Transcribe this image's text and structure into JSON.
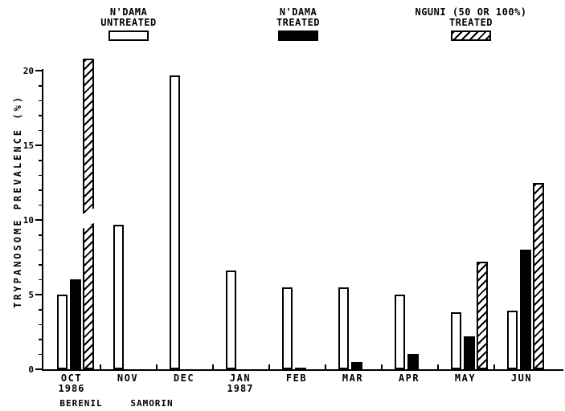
{
  "meta": {
    "paper_color": "#ffffff",
    "ink_color": "#000000",
    "figure_kind": "scanned journal bar chart"
  },
  "legend": {
    "items": [
      {
        "line1": "N'DAMA",
        "line2": "UNTREATED",
        "swatch": "open",
        "swatch_style_name": "white-bar"
      },
      {
        "line1": "N'DAMA",
        "line2": "TREATED",
        "swatch": "solid",
        "swatch_style_name": "black-bar"
      },
      {
        "line1": "NGUNI (50 OR 100%)",
        "line2": "TREATED",
        "swatch": "hatched",
        "swatch_style_name": "diagonal-hatch-bar"
      }
    ]
  },
  "chart_data": {
    "type": "bar",
    "title": "",
    "xlabel": "",
    "ylabel": "TRYPANOSOME PREVALENCE (%)",
    "ylim": [
      0,
      20
    ],
    "yticks": [
      0,
      5,
      10,
      15,
      20
    ],
    "minor_ytick_interval": 1,
    "grid": false,
    "legend_position": "top",
    "categories": [
      "OCT",
      "NOV",
      "DEC",
      "JAN",
      "FEB",
      "MAR",
      "APR",
      "MAY",
      "JUN"
    ],
    "category_year_labels": [
      "1986",
      "",
      "",
      "1987",
      "",
      "",
      "",
      "",
      ""
    ],
    "series": [
      {
        "name": "N'DAMA UNTREATED",
        "style": "open",
        "values": [
          5.0,
          9.7,
          19.7,
          6.6,
          5.5,
          5.5,
          5.0,
          3.8,
          3.9
        ]
      },
      {
        "name": "N'DAMA TREATED",
        "style": "solid",
        "values": [
          6.0,
          0,
          0,
          0,
          0.1,
          0.5,
          1.0,
          2.2,
          8.0
        ]
      },
      {
        "name": "NGUNI (50 OR 100%) TREATED",
        "style": "hatched",
        "values": [
          20.8,
          0,
          0,
          0,
          0,
          0,
          0,
          7.2,
          12.5
        ],
        "offscale_note": "OCT bar exceeds the y-axis and is drawn with an axis break"
      }
    ],
    "broken_bar": {
      "series_index": 2,
      "category_index": 0,
      "segments_pct": [
        [
          0,
          9.8
        ],
        [
          10.4,
          20.8
        ]
      ]
    },
    "annotations": [
      {
        "text": "BERENIL",
        "under": "OCT"
      },
      {
        "text": "SAMORIN",
        "under": "NOV-DEC"
      }
    ]
  }
}
